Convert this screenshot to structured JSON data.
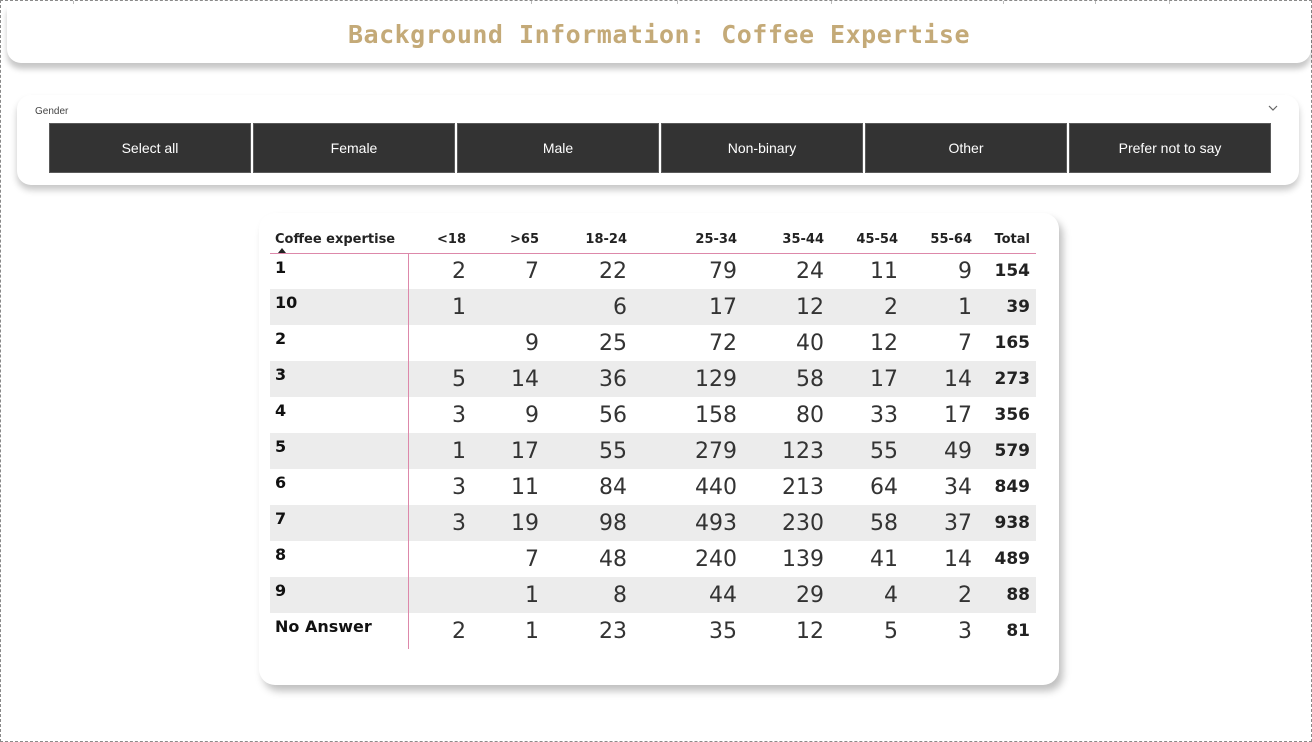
{
  "report": {
    "title": "Background Information: Coffee Expertise"
  },
  "slicer": {
    "label": "Gender",
    "chevron_icon": "chevron-down-icon",
    "options": [
      "Select all",
      "Female",
      "Male",
      "Non-binary",
      "Other",
      "Prefer not to say"
    ],
    "button_color": "#333333",
    "text_color": "#ffffff"
  },
  "matrix": {
    "row_header": "Coffee expertise",
    "sort": "ascending",
    "columns": [
      "<18",
      ">65",
      "18-24",
      "25-34",
      "35-44",
      "45-54",
      "55-64",
      "Total"
    ],
    "rows": [
      {
        "label": "1",
        "values": [
          "2",
          "7",
          "22",
          "79",
          "24",
          "11",
          "9"
        ],
        "total": "154"
      },
      {
        "label": "10",
        "values": [
          "1",
          "",
          "6",
          "17",
          "12",
          "2",
          "1"
        ],
        "total": "39"
      },
      {
        "label": "2",
        "values": [
          "",
          "9",
          "25",
          "72",
          "40",
          "12",
          "7"
        ],
        "total": "165"
      },
      {
        "label": "3",
        "values": [
          "5",
          "14",
          "36",
          "129",
          "58",
          "17",
          "14"
        ],
        "total": "273"
      },
      {
        "label": "4",
        "values": [
          "3",
          "9",
          "56",
          "158",
          "80",
          "33",
          "17"
        ],
        "total": "356"
      },
      {
        "label": "5",
        "values": [
          "1",
          "17",
          "55",
          "279",
          "123",
          "55",
          "49"
        ],
        "total": "579"
      },
      {
        "label": "6",
        "values": [
          "3",
          "11",
          "84",
          "440",
          "213",
          "64",
          "34"
        ],
        "total": "849"
      },
      {
        "label": "7",
        "values": [
          "3",
          "19",
          "98",
          "493",
          "230",
          "58",
          "37"
        ],
        "total": "938"
      },
      {
        "label": "8",
        "values": [
          "",
          "7",
          "48",
          "240",
          "139",
          "41",
          "14"
        ],
        "total": "489"
      },
      {
        "label": "9",
        "values": [
          "",
          "1",
          "8",
          "44",
          "29",
          "4",
          "2"
        ],
        "total": "88"
      },
      {
        "label": "No Answer",
        "values": [
          "2",
          "1",
          "23",
          "35",
          "12",
          "5",
          "3"
        ],
        "total": "81"
      }
    ],
    "accent_color": "#dd88aa",
    "stripe_color": "#ececec"
  },
  "colors": {
    "title": "#c4aa78"
  }
}
